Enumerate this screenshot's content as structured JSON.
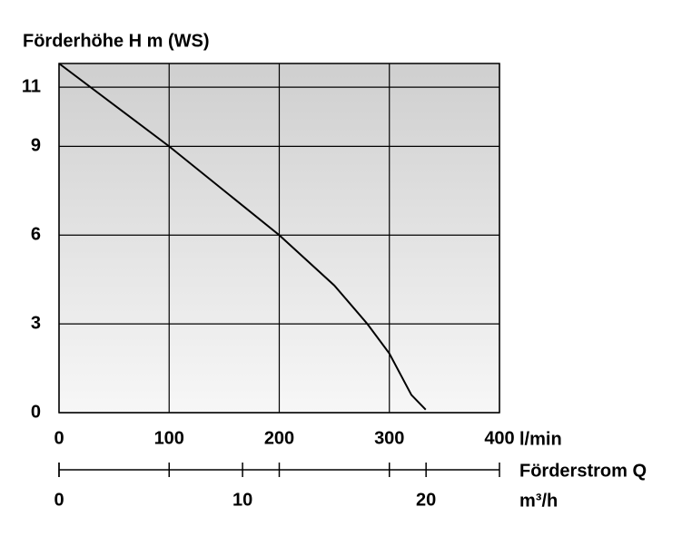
{
  "chart_data": {
    "type": "line",
    "y_label": "Förderhöhe H m (WS)",
    "x_label": "l/min",
    "x2_label": "Förderstrom Q",
    "x2_unit": "m³/h",
    "x": [
      0,
      100,
      200,
      250,
      280,
      300,
      320,
      333
    ],
    "series": [
      {
        "color": "#000000",
        "values": [
          11.8,
          9,
          6,
          4.3,
          3,
          2,
          0.6,
          0.1
        ]
      }
    ],
    "xlim": [
      0,
      400
    ],
    "xticks": [
      0,
      100,
      200,
      300,
      400
    ],
    "ylim": [
      0,
      11.8
    ],
    "yticks": [
      0,
      3,
      6,
      9,
      11
    ],
    "x2lim": [
      0,
      24
    ],
    "x2ticks": [
      0,
      10,
      20
    ],
    "grid": true
  }
}
